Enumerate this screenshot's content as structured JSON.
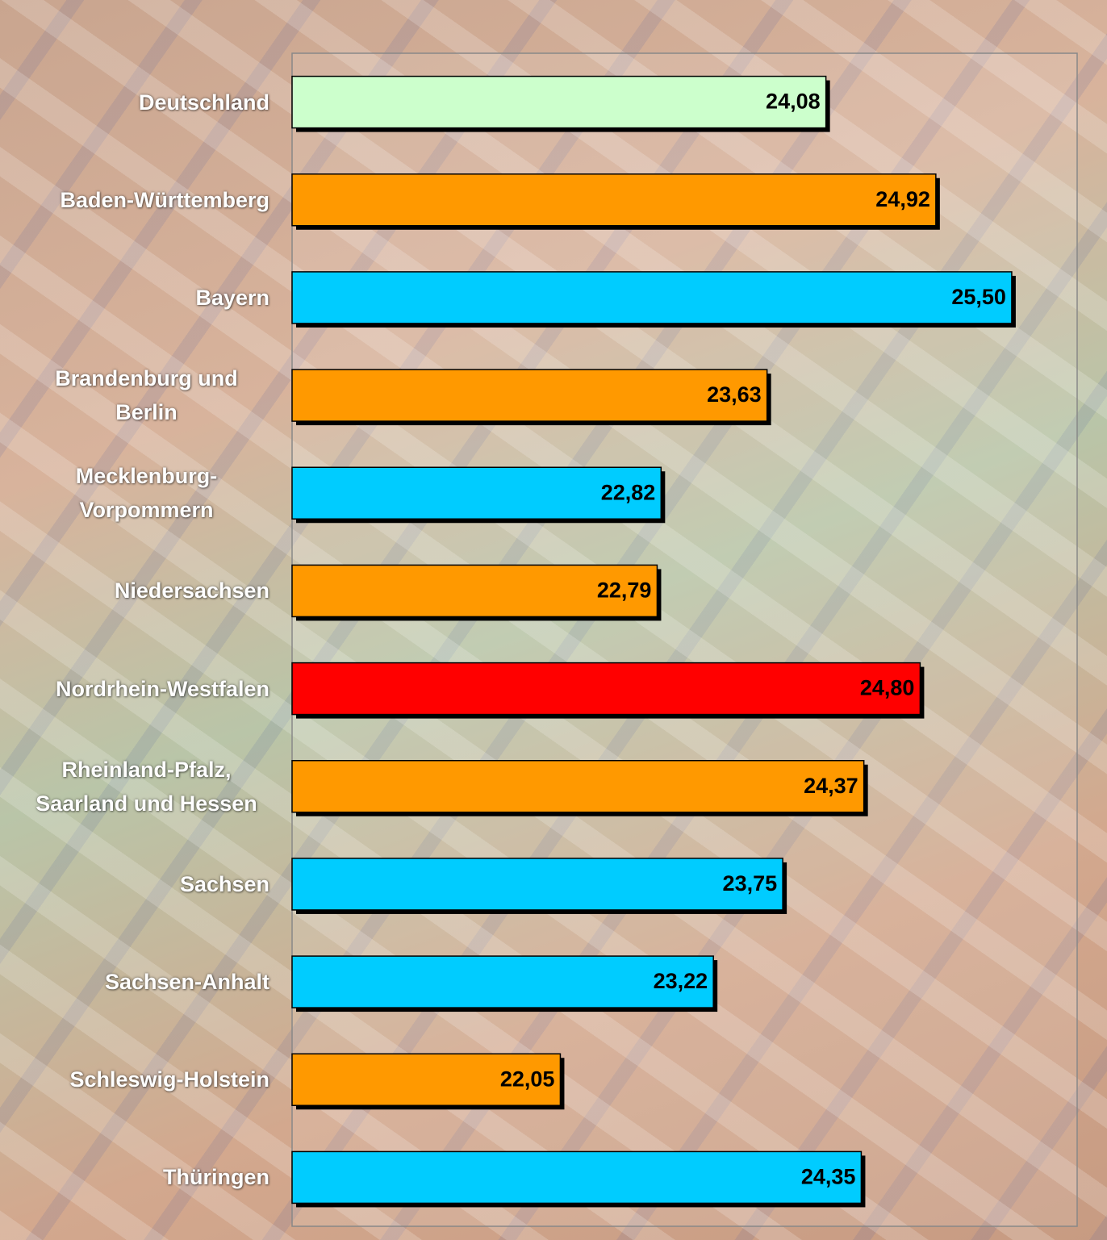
{
  "chart_data": {
    "type": "bar",
    "orientation": "horizontal",
    "categories": [
      "Deutschland",
      "Baden-Württemberg",
      "Bayern",
      "Brandenburg und Berlin",
      "Mecklenburg-Vorpommern",
      "Niedersachsen",
      "Nordrhein-Westfalen",
      "Rheinland-Pfalz, Saarland und Hessen",
      "Sachsen",
      "Sachsen-Anhalt",
      "Schleswig-Holstein",
      "Thüringen"
    ],
    "values": [
      24.08,
      24.92,
      25.5,
      23.63,
      22.82,
      22.79,
      24.8,
      24.37,
      23.75,
      23.22,
      22.05,
      24.35
    ],
    "value_labels": [
      "24,08",
      "24,92",
      "25,50",
      "23,63",
      "22,82",
      "22,79",
      "24,80",
      "24,37",
      "23,75",
      "23,22",
      "22,05",
      "24,35"
    ],
    "colors": [
      "#ccffcc",
      "#ff9900",
      "#00ccff",
      "#ff9900",
      "#00ccff",
      "#ff9900",
      "#ff0000",
      "#ff9900",
      "#00ccff",
      "#00ccff",
      "#ff9900",
      "#00ccff"
    ],
    "xlim": [
      20,
      26
    ]
  }
}
